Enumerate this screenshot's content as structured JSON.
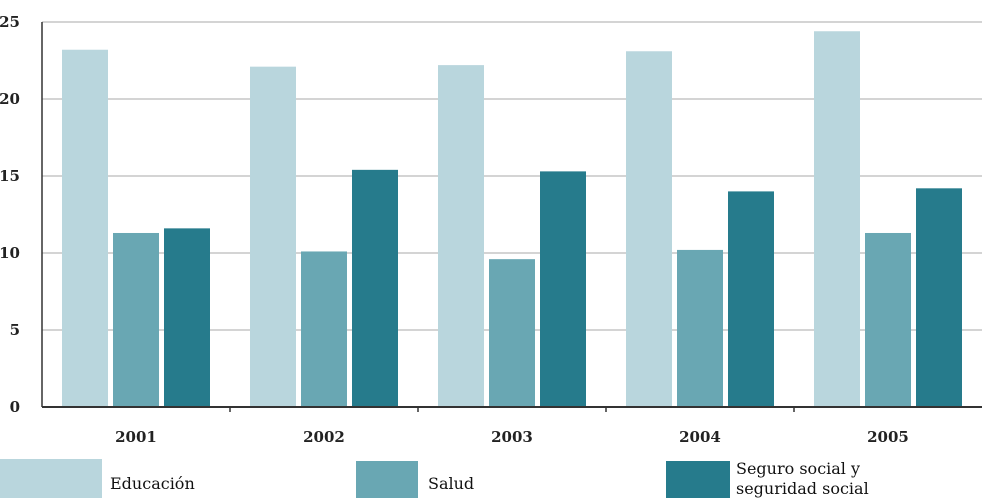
{
  "chart_data": {
    "type": "bar",
    "categories": [
      "2001",
      "2002",
      "2003",
      "2004",
      "2005"
    ],
    "series": [
      {
        "name": "Educación",
        "values": [
          23.2,
          22.1,
          22.2,
          23.1,
          24.4
        ],
        "color": "#b9d6dd"
      },
      {
        "name": "Salud",
        "values": [
          11.3,
          10.1,
          9.6,
          10.2,
          11.3
        ],
        "color": "#69a7b3"
      },
      {
        "name": "Seguro social y seguridad social",
        "values": [
          11.6,
          15.4,
          15.3,
          14.0,
          14.2
        ],
        "color": "#267b8c"
      }
    ],
    "yticks": [
      "0",
      "5",
      "10",
      "15",
      "20",
      "25"
    ],
    "ylim": [
      0,
      25
    ],
    "grid": true,
    "legend_position": "bottom",
    "legend": {
      "educacion": "Educación",
      "salud": "Salud",
      "seguro_line1": "Seguro social y",
      "seguro_line2": "seguridad social"
    }
  }
}
